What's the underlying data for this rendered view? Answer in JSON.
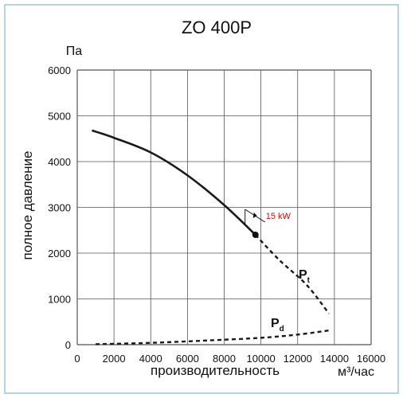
{
  "chart_data": {
    "type": "line",
    "title": "ZO 400P",
    "ylabel": "полное давление",
    "y_unit": "Па",
    "xlabel": "производительность",
    "x_unit": "м³/час",
    "xlim": [
      0,
      16000
    ],
    "ylim": [
      0,
      6000
    ],
    "x_ticks": [
      0,
      2000,
      4000,
      6000,
      8000,
      10000,
      12000,
      14000,
      16000
    ],
    "y_ticks": [
      0,
      1000,
      2000,
      3000,
      4000,
      5000,
      6000
    ],
    "x_tick_labels": [
      "0",
      "2000",
      "4000",
      "6000",
      "8000",
      "10000",
      "12000",
      "14000",
      "16000"
    ],
    "y_tick_labels": [
      "0",
      "1000",
      "2000",
      "3000",
      "4000",
      "5000",
      "6000"
    ],
    "grid": true,
    "series": [
      {
        "name": "Pt",
        "label_main": "P",
        "label_sub": "t",
        "color": "#1a1a1a",
        "solid": {
          "x": [
            800,
            2000,
            4000,
            6000,
            8000,
            9700
          ],
          "y": [
            4680,
            4520,
            4200,
            3700,
            3050,
            2400
          ]
        },
        "dashed": {
          "x": [
            9700,
            11000,
            12500,
            13700
          ],
          "y": [
            2400,
            1850,
            1300,
            680
          ]
        }
      },
      {
        "name": "Pd",
        "label_main": "P",
        "label_sub": "d",
        "color": "#1a1a1a",
        "dashed": {
          "x": [
            1000,
            4000,
            7000,
            10000,
            12000,
            13700
          ],
          "y": [
            10,
            40,
            90,
            150,
            220,
            310
          ]
        }
      }
    ],
    "operating_point": {
      "x": 9700,
      "y": 2400
    },
    "annotation": {
      "text": "15 kW",
      "color": "#cc1111"
    }
  }
}
